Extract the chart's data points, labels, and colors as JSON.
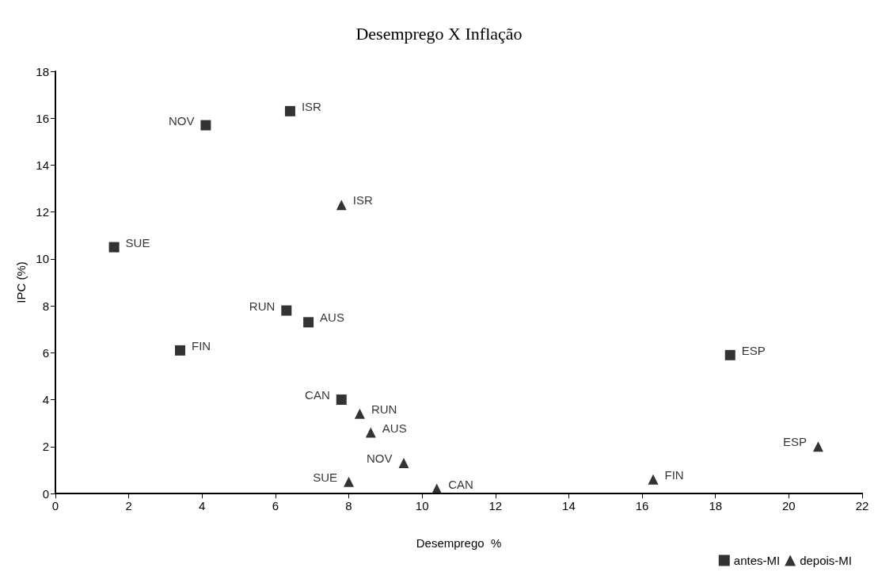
{
  "chart_data": {
    "type": "scatter",
    "title": "Desemprego X Inflação",
    "xlabel": "Desemprego  %",
    "ylabel": "IPC (%)",
    "xlim": [
      0,
      22
    ],
    "xticks": [
      0,
      2,
      4,
      6,
      8,
      10,
      12,
      14,
      16,
      18,
      20,
      22
    ],
    "ylim": [
      0,
      18
    ],
    "yticks": [
      0,
      2,
      4,
      6,
      8,
      10,
      12,
      14,
      16,
      18
    ],
    "grid": false,
    "legend": "bottom right",
    "series": [
      {
        "name": "antes-MI",
        "color": "#000000",
        "marker": "square",
        "x": [
          4.1,
          6.4,
          1.6,
          6.3,
          6.9,
          3.4,
          7.8,
          18.4
        ],
        "values": [
          15.7,
          16.3,
          10.5,
          7.8,
          7.3,
          6.1,
          4.0,
          5.9
        ],
        "value_labels": [
          "NOV",
          "ISR",
          "SUE",
          "RUN",
          "AUS",
          "FIN",
          "CAN",
          "ESP"
        ]
      },
      {
        "name": "depois-MI",
        "color": "#000000",
        "marker": "triangle",
        "x": [
          7.8,
          8.3,
          8.6,
          9.5,
          8.0,
          10.4,
          16.3,
          20.8
        ],
        "values": [
          12.3,
          3.4,
          2.6,
          1.3,
          0.5,
          0.2,
          0.6,
          2.0
        ],
        "value_labels": [
          "ISR",
          "RUN",
          "AUS",
          "NOV",
          "SUE",
          "CAN",
          "FIN",
          "ESP"
        ]
      }
    ]
  }
}
